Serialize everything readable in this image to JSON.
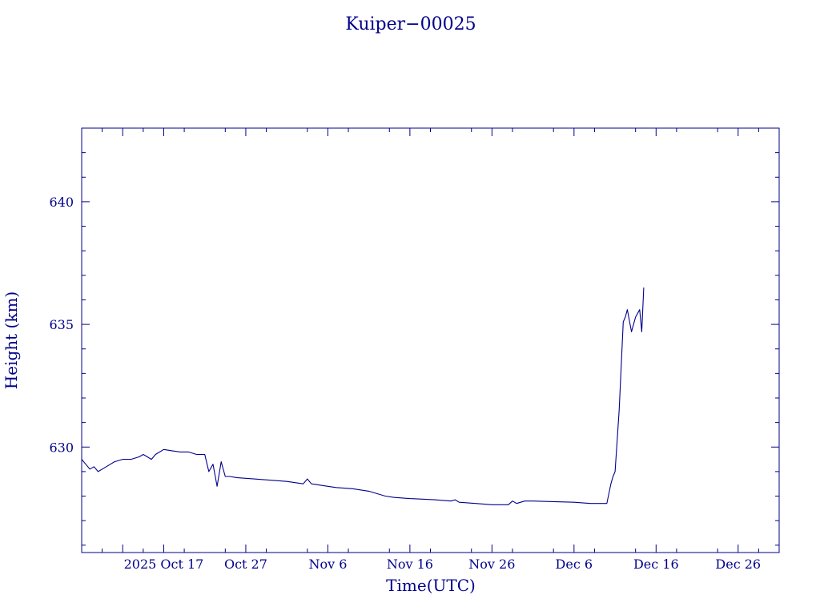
{
  "chart_data": {
    "type": "line",
    "title": "Kuiper−00025",
    "xlabel": "Time(UTC)",
    "ylabel": "Height (km)",
    "color": "#00008b",
    "x_unit": "date",
    "xlim": [
      "2025-10-07",
      "2025-12-31"
    ],
    "ylim": [
      625.7,
      643.0
    ],
    "x_ticks": [
      {
        "date": "2025-10-12",
        "label": ""
      },
      {
        "date": "2025-10-17",
        "label": "2025 Oct 17"
      },
      {
        "date": "2025-10-27",
        "label": "Oct 27"
      },
      {
        "date": "2025-11-06",
        "label": "Nov  6"
      },
      {
        "date": "2025-11-16",
        "label": "Nov 16"
      },
      {
        "date": "2025-11-26",
        "label": "Nov 26"
      },
      {
        "date": "2025-12-06",
        "label": "Dec  6"
      },
      {
        "date": "2025-12-16",
        "label": "Dec 16"
      },
      {
        "date": "2025-12-26",
        "label": "Dec 26"
      }
    ],
    "y_ticks": [
      {
        "value": 630,
        "label": "630"
      },
      {
        "value": 635,
        "label": "635"
      },
      {
        "value": 640,
        "label": "640"
      }
    ],
    "series": [
      {
        "x": [
          "2025-10-07",
          "2025-10-07T12:00",
          "2025-10-08",
          "2025-10-08T12:00",
          "2025-10-09",
          "2025-10-10",
          "2025-10-10T12:00",
          "2025-10-11",
          "2025-10-12",
          "2025-10-13",
          "2025-10-14",
          "2025-10-14T12:00",
          "2025-10-15",
          "2025-10-15T12:00",
          "2025-10-16",
          "2025-10-17",
          "2025-10-18",
          "2025-10-19",
          "2025-10-20",
          "2025-10-21",
          "2025-10-22",
          "2025-10-22T12:00",
          "2025-10-23",
          "2025-10-23T12:00",
          "2025-10-24",
          "2025-10-24T12:00",
          "2025-10-25",
          "2025-10-26",
          "2025-10-28",
          "2025-11-01",
          "2025-11-03",
          "2025-11-03T12:00",
          "2025-11-04",
          "2025-11-06",
          "2025-11-07",
          "2025-11-09",
          "2025-11-11",
          "2025-11-13",
          "2025-11-14",
          "2025-11-16",
          "2025-11-19",
          "2025-11-21",
          "2025-11-21T12:00",
          "2025-11-22",
          "2025-11-24",
          "2025-11-26",
          "2025-11-28",
          "2025-11-28T12:00",
          "2025-11-29",
          "2025-11-30",
          "2025-12-01",
          "2025-12-03",
          "2025-12-06",
          "2025-12-08",
          "2025-12-10",
          "2025-12-10T12:00",
          "2025-12-10T18:00",
          "2025-12-11",
          "2025-12-11T12:00",
          "2025-12-12",
          "2025-12-12T06:00",
          "2025-12-12T12:00",
          "2025-12-13",
          "2025-12-13T12:00",
          "2025-12-14",
          "2025-12-14T06:00",
          "2025-12-14T12:00"
        ],
        "values": [
          629.5,
          629.3,
          629.1,
          629.2,
          629.0,
          629.2,
          629.3,
          629.4,
          629.5,
          629.5,
          629.6,
          629.7,
          629.6,
          629.5,
          629.7,
          629.9,
          629.85,
          629.8,
          629.8,
          629.7,
          629.7,
          629.0,
          629.3,
          628.4,
          629.4,
          628.8,
          628.8,
          628.75,
          628.7,
          628.6,
          628.5,
          628.7,
          628.5,
          628.4,
          628.35,
          628.3,
          628.2,
          628.0,
          627.95,
          627.9,
          627.85,
          627.8,
          627.85,
          627.75,
          627.7,
          627.65,
          627.65,
          627.8,
          627.7,
          627.8,
          627.8,
          627.78,
          627.75,
          627.7,
          627.7,
          628.5,
          628.8,
          629.0,
          631.5,
          635.1,
          635.3,
          635.6,
          634.7,
          635.3,
          635.6,
          634.7,
          636.5
        ]
      }
    ]
  }
}
